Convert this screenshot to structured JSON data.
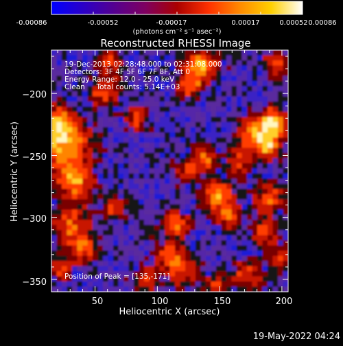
{
  "colorbar": {
    "stops": [
      "#0000ff",
      "#2a00c8",
      "#550090",
      "#7f0060",
      "#aa0000",
      "#ff3000",
      "#ff8a00",
      "#ffd000",
      "#ffffff"
    ],
    "range": [
      -0.00086,
      0.00086
    ],
    "tick_labels": [
      "-0.00086",
      "-0.00052",
      "-0.00017",
      "0.00017",
      "0.00052",
      "0.00086"
    ],
    "units": "(photons cm⁻² s⁻¹ asec⁻²)"
  },
  "title": "Reconstructed RHESSI Image",
  "overlay": {
    "time_range": "19-Dec-2013 02:28:48.000 to 02:31:08.000",
    "detectors": "Detectors: 3F 4F 5F 6F 7F 8F, Att 0",
    "energy_range": "Energy Range: 12.0 - 25.0 keV",
    "method_counts": "Clean     Total counts: 5.14E+03",
    "peak_position": "Position of Peak = [135,-171]"
  },
  "x_axis": {
    "title": "Heliocentric X (arcsec)",
    "range": [
      15,
      205
    ],
    "ticks": [
      50,
      100,
      150,
      200
    ],
    "tick_labels": [
      "50",
      "100",
      "150",
      "200"
    ]
  },
  "y_axis": {
    "title": "Heliocentric Y (arcsec)",
    "range": [
      -360,
      -165
    ],
    "ticks": [
      -200,
      -250,
      -300,
      -350
    ],
    "tick_labels": [
      "−200",
      "−250",
      "−300",
      "−350"
    ]
  },
  "footer": {
    "date": "19-May-2022 04:24"
  }
}
